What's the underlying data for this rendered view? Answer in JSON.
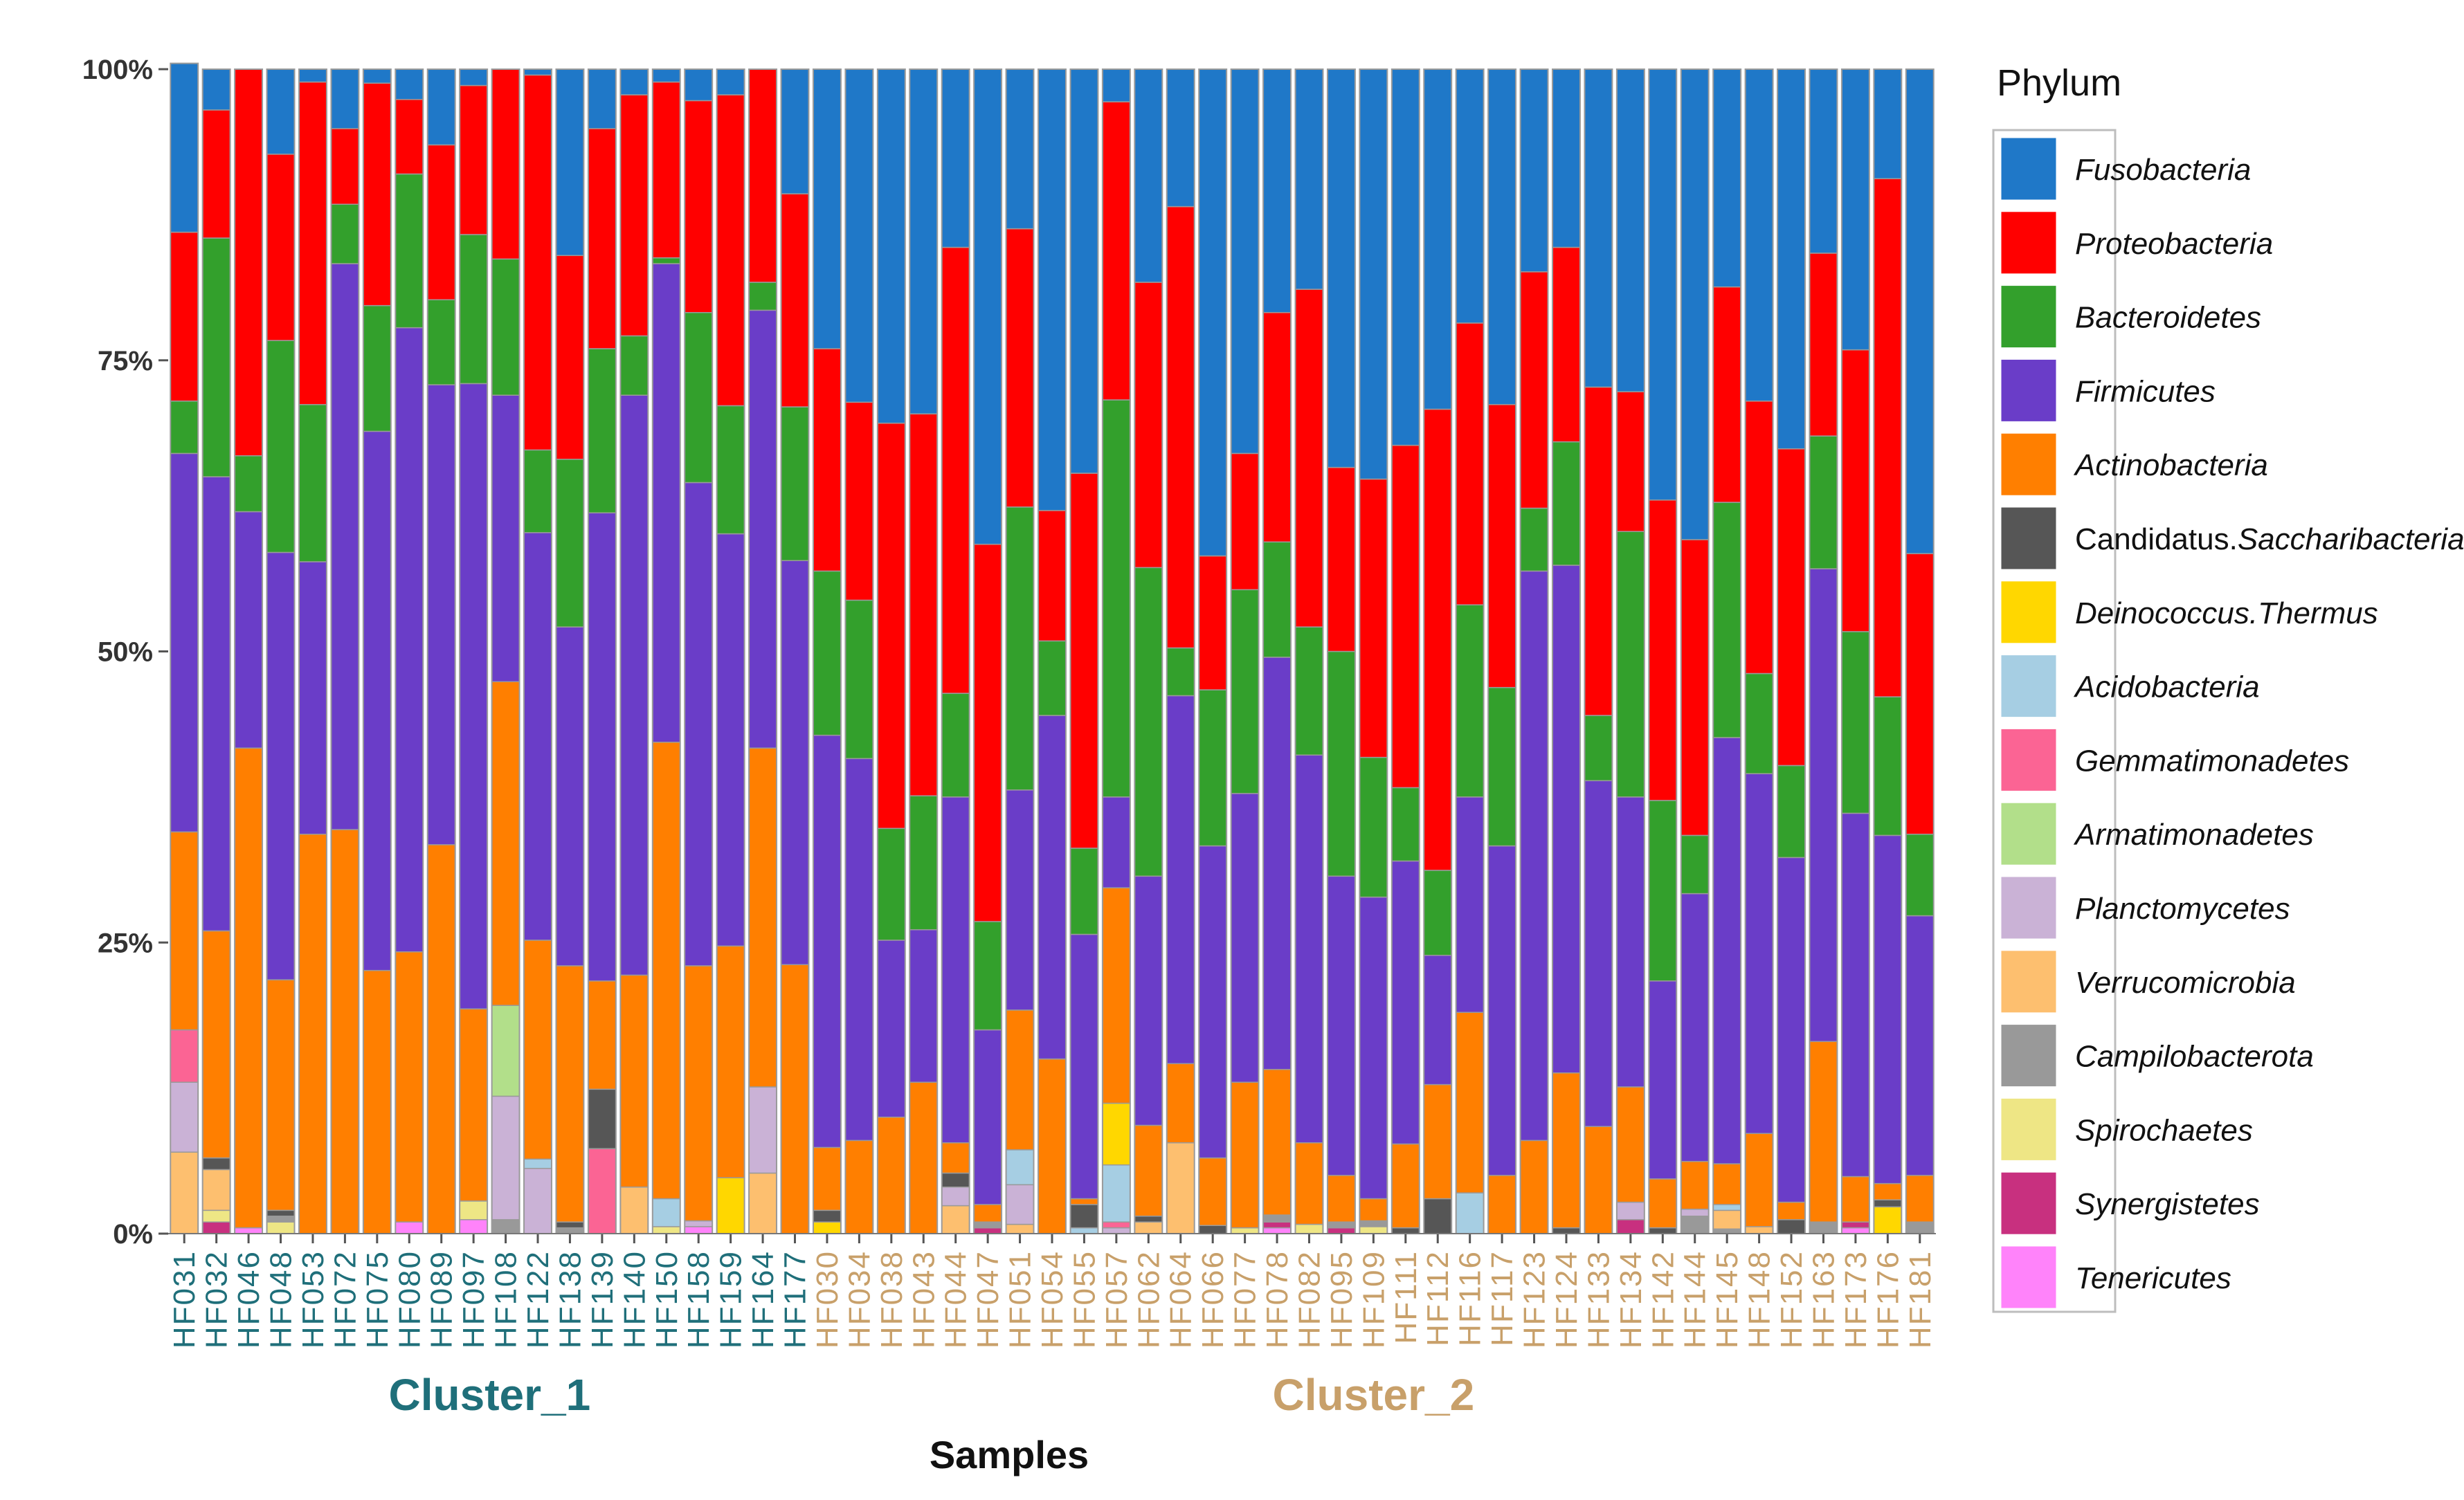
{
  "chart_data": {
    "type": "bar",
    "stacked": true,
    "normalized": true,
    "xlabel": "Samples",
    "ylabel": "",
    "ylim": [
      0,
      100
    ],
    "yticks": [
      "0%",
      "25%",
      "50%",
      "75%",
      "100%"
    ],
    "legend_title": "Phylum",
    "legend_position": "right",
    "clusters": [
      {
        "name": "Cluster_1",
        "color": "#1f6f7a",
        "samples": [
          "HF031",
          "HF032",
          "HF046",
          "HF048",
          "HF053",
          "HF072",
          "HF075",
          "HF080",
          "HF089",
          "HF097",
          "HF108",
          "HF122",
          "HF138",
          "HF139",
          "HF140",
          "HF150",
          "HF158",
          "HF159",
          "HF164",
          "HF177"
        ]
      },
      {
        "name": "Cluster_2",
        "color": "#c8a06a",
        "samples": [
          "HF030",
          "HF034",
          "HF038",
          "HF043",
          "HF044",
          "HF047",
          "HF051",
          "HF054",
          "HF055",
          "HF057",
          "HF062",
          "HF064",
          "HF066",
          "HF077",
          "HF078",
          "HF082",
          "HF095",
          "HF109",
          "HF111",
          "HF112",
          "HF116",
          "HF117",
          "HF123",
          "HF124",
          "HF133",
          "HF134",
          "HF142",
          "HF144",
          "HF145",
          "HF148",
          "HF152",
          "HF163",
          "HF173",
          "HF176",
          "HF181"
        ]
      }
    ],
    "stack_order": [
      "Tenericutes",
      "Synergistetes",
      "Spirochaetes",
      "Campilobacterota",
      "Verrucomicrobia",
      "Planctomycetes",
      "Armatimonadetes",
      "Gemmatimonadetes",
      "Acidobacteria",
      "Deinococcus.Thermus",
      "Candidatus.Saccharibacteria",
      "Actinobacteria",
      "Firmicutes",
      "Bacteroidetes",
      "Proteobacteria",
      "Fusobacteria"
    ],
    "series": [
      {
        "name": "Fusobacteria",
        "color": "#1f78c8"
      },
      {
        "name": "Proteobacteria",
        "color": "#ff0000"
      },
      {
        "name": "Bacteroidetes",
        "color": "#33a02c"
      },
      {
        "name": "Firmicutes",
        "color": "#6a3dc8"
      },
      {
        "name": "Actinobacteria",
        "color": "#ff7f00"
      },
      {
        "name": "Candidatus.Saccharibacteria",
        "color": "#565656",
        "label_prefix": "Candidatus.",
        "label_italic": "Saccharibacteria"
      },
      {
        "name": "Deinococcus.Thermus",
        "color": "#ffd700"
      },
      {
        "name": "Acidobacteria",
        "color": "#a6cee3"
      },
      {
        "name": "Gemmatimonadetes",
        "color": "#fb6494"
      },
      {
        "name": "Armatimonadetes",
        "color": "#b2df8a"
      },
      {
        "name": "Planctomycetes",
        "color": "#cab2d6"
      },
      {
        "name": "Verrucomicrobia",
        "color": "#fdbf6f"
      },
      {
        "name": "Campilobacterota",
        "color": "#999999"
      },
      {
        "name": "Spirochaetes",
        "color": "#eee685"
      },
      {
        "name": "Synergistetes",
        "color": "#c8307f"
      },
      {
        "name": "Tenericutes",
        "color": "#ff83fa"
      }
    ],
    "values": {
      "HF031": {
        "Verrucomicrobia": 7,
        "Planctomycetes": 6,
        "Gemmatimonadetes": 4.5,
        "Actinobacteria": 17,
        "Firmicutes": 32.5,
        "Bacteroidetes": 4.5,
        "Proteobacteria": 14.5,
        "Fusobacteria": 14.5
      },
      "HF032": {
        "Synergistetes": 1,
        "Spirochaetes": 1,
        "Verrucomicrobia": 3.5,
        "Candidatus.Saccharibacteria": 1,
        "Actinobacteria": 19.5,
        "Firmicutes": 39,
        "Bacteroidetes": 20.5,
        "Proteobacteria": 11,
        "Fusobacteria": 3.5
      },
      "HF046": {
        "Tenericutes": 0.5,
        "Actinobacteria": 41.2,
        "Firmicutes": 20.3,
        "Bacteroidetes": 4.8,
        "Proteobacteria": 33.2
      },
      "HF048": {
        "Spirochaetes": 1,
        "Campilobacterota": 0.5,
        "Candidatus.Saccharibacteria": 0.5,
        "Actinobacteria": 19.8,
        "Firmicutes": 36.7,
        "Bacteroidetes": 18.2,
        "Proteobacteria": 16,
        "Fusobacteria": 7.3
      },
      "HF053": {
        "Actinobacteria": 34.3,
        "Firmicutes": 23.4,
        "Bacteroidetes": 13.5,
        "Proteobacteria": 27.7,
        "Fusobacteria": 1.1
      },
      "HF072": {
        "Actinobacteria": 34.7,
        "Firmicutes": 48.6,
        "Bacteroidetes": 5.1,
        "Proteobacteria": 6.5,
        "Fusobacteria": 5.1
      },
      "HF075": {
        "Actinobacteria": 22.6,
        "Firmicutes": 46.3,
        "Bacteroidetes": 10.8,
        "Proteobacteria": 19.1,
        "Fusobacteria": 1.2
      },
      "HF080": {
        "Tenericutes": 1,
        "Actinobacteria": 23.2,
        "Firmicutes": 53.6,
        "Bacteroidetes": 13.2,
        "Proteobacteria": 6.4,
        "Fusobacteria": 2.6
      },
      "HF089": {
        "Actinobacteria": 33.4,
        "Firmicutes": 39.5,
        "Bacteroidetes": 7.3,
        "Proteobacteria": 13.3,
        "Fusobacteria": 6.5
      },
      "HF097": {
        "Tenericutes": 1.2,
        "Spirochaetes": 1.6,
        "Actinobacteria": 16.5,
        "Firmicutes": 53.7,
        "Bacteroidetes": 12.8,
        "Proteobacteria": 12.8,
        "Fusobacteria": 1.4
      },
      "HF108": {
        "Campilobacterota": 1.2,
        "Planctomycetes": 10.6,
        "Armatimonadetes": 7.8,
        "Actinobacteria": 27.8,
        "Firmicutes": 24.6,
        "Bacteroidetes": 11.7,
        "Proteobacteria": 16.3
      },
      "HF122": {
        "Planctomycetes": 5.6,
        "Acidobacteria": 0.8,
        "Actinobacteria": 18.8,
        "Firmicutes": 35,
        "Bacteroidetes": 7.1,
        "Proteobacteria": 32.2,
        "Fusobacteria": 0.5
      },
      "HF138": {
        "Campilobacterota": 0.5,
        "Candidatus.Saccharibacteria": 0.5,
        "Actinobacteria": 22,
        "Firmicutes": 29.1,
        "Bacteroidetes": 14.4,
        "Proteobacteria": 17.5,
        "Fusobacteria": 16
      },
      "HF139": {
        "Gemmatimonadetes": 7.3,
        "Candidatus.Saccharibacteria": 5.1,
        "Actinobacteria": 9.3,
        "Firmicutes": 40.2,
        "Bacteroidetes": 14.1,
        "Proteobacteria": 18.9,
        "Fusobacteria": 5.1
      },
      "HF140": {
        "Verrucomicrobia": 4,
        "Actinobacteria": 18.2,
        "Firmicutes": 49.8,
        "Bacteroidetes": 5.1,
        "Proteobacteria": 20.7,
        "Fusobacteria": 2.2
      },
      "HF150": {
        "Spirochaetes": 0.6,
        "Acidobacteria": 2.4,
        "Actinobacteria": 39.2,
        "Firmicutes": 41.1,
        "Bacteroidetes": 0.5,
        "Proteobacteria": 15.1,
        "Fusobacteria": 1.1
      },
      "HF158": {
        "Tenericutes": 0.6,
        "Planctomycetes": 0.5,
        "Actinobacteria": 21.9,
        "Firmicutes": 41.5,
        "Bacteroidetes": 14.6,
        "Proteobacteria": 18.2,
        "Fusobacteria": 2.7
      },
      "HF159": {
        "Deinococcus.Thermus": 4.8,
        "Actinobacteria": 19.9,
        "Firmicutes": 35.4,
        "Bacteroidetes": 11,
        "Proteobacteria": 26.7,
        "Fusobacteria": 2.2
      },
      "HF164": {
        "Verrucomicrobia": 5.2,
        "Planctomycetes": 7.4,
        "Actinobacteria": 29.1,
        "Firmicutes": 37.6,
        "Bacteroidetes": 2.4,
        "Proteobacteria": 18.3
      },
      "HF177": {
        "Actinobacteria": 23.1,
        "Firmicutes": 34.7,
        "Bacteroidetes": 13.2,
        "Proteobacteria": 18.3,
        "Fusobacteria": 10.7
      },
      "HF030": {
        "Deinococcus.Thermus": 1,
        "Candidatus.Saccharibacteria": 1,
        "Actinobacteria": 5.4,
        "Firmicutes": 35.4,
        "Bacteroidetes": 14.1,
        "Proteobacteria": 19.1,
        "Fusobacteria": 24
      },
      "HF034": {
        "Actinobacteria": 8,
        "Firmicutes": 32.8,
        "Bacteroidetes": 13.6,
        "Proteobacteria": 17,
        "Fusobacteria": 28.6
      },
      "HF038": {
        "Actinobacteria": 10,
        "Firmicutes": 15.2,
        "Bacteroidetes": 9.6,
        "Proteobacteria": 34.8,
        "Fusobacteria": 30.4
      },
      "HF043": {
        "Actinobacteria": 13,
        "Firmicutes": 13.1,
        "Bacteroidetes": 11.5,
        "Proteobacteria": 32.8,
        "Fusobacteria": 29.6
      },
      "HF044": {
        "Verrucomicrobia": 2.4,
        "Planctomycetes": 1.6,
        "Candidatus.Saccharibacteria": 1.2,
        "Actinobacteria": 2.6,
        "Firmicutes": 29.7,
        "Bacteroidetes": 8.9,
        "Proteobacteria": 38.3,
        "Fusobacteria": 15.3
      },
      "HF047": {
        "Synergistetes": 0.5,
        "Campilobacterota": 0.5,
        "Actinobacteria": 1.5,
        "Firmicutes": 15,
        "Bacteroidetes": 9.3,
        "Proteobacteria": 32.4,
        "Fusobacteria": 40.8
      },
      "HF051": {
        "Verrucomicrobia": 0.8,
        "Planctomycetes": 3.4,
        "Acidobacteria": 3,
        "Actinobacteria": 12,
        "Firmicutes": 18.9,
        "Bacteroidetes": 24.3,
        "Proteobacteria": 23.9,
        "Fusobacteria": 13.7
      },
      "HF054": {
        "Actinobacteria": 15,
        "Firmicutes": 29.5,
        "Bacteroidetes": 6.4,
        "Proteobacteria": 11.2,
        "Fusobacteria": 37.9
      },
      "HF055": {
        "Candidatus.Saccharibacteria": 2,
        "Acidobacteria": 0.5,
        "Actinobacteria": 0.5,
        "Firmicutes": 22.7,
        "Bacteroidetes": 7.4,
        "Proteobacteria": 32.2,
        "Fusobacteria": 34.7
      },
      "HF057": {
        "Gemmatimonadetes": 0.5,
        "Planctomycetes": 0.5,
        "Acidobacteria": 4.9,
        "Deinococcus.Thermus": 5.3,
        "Actinobacteria": 18.5,
        "Firmicutes": 7.8,
        "Bacteroidetes": 34.1,
        "Proteobacteria": 25.6,
        "Fusobacteria": 2.8
      },
      "HF062": {
        "Verrucomicrobia": 1,
        "Candidatus.Saccharibacteria": 0.5,
        "Actinobacteria": 7.8,
        "Firmicutes": 21.4,
        "Bacteroidetes": 26.5,
        "Proteobacteria": 24.5,
        "Fusobacteria": 18.3
      },
      "HF064": {
        "Verrucomicrobia": 7.8,
        "Actinobacteria": 6.8,
        "Firmicutes": 31.6,
        "Bacteroidetes": 4.1,
        "Proteobacteria": 37.9,
        "Fusobacteria": 11.8
      },
      "HF066": {
        "Candidatus.Saccharibacteria": 0.7,
        "Actinobacteria": 5.8,
        "Firmicutes": 26.8,
        "Bacteroidetes": 13.4,
        "Proteobacteria": 11.5,
        "Fusobacteria": 41.8
      },
      "HF077": {
        "Spirochaetes": 0.5,
        "Actinobacteria": 12.5,
        "Firmicutes": 24.8,
        "Bacteroidetes": 17.5,
        "Proteobacteria": 11.7,
        "Fusobacteria": 33
      },
      "HF078": {
        "Tenericutes": 0.5,
        "Synergistetes": 0.5,
        "Campilobacterota": 0.6,
        "Actinobacteria": 12.5,
        "Firmicutes": 35.4,
        "Bacteroidetes": 9.9,
        "Proteobacteria": 19.7,
        "Fusobacteria": 20.9
      },
      "HF082": {
        "Spirochaetes": 0.8,
        "Actinobacteria": 7,
        "Firmicutes": 33.3,
        "Bacteroidetes": 11,
        "Proteobacteria": 29,
        "Fusobacteria": 18.9
      },
      "HF095": {
        "Synergistetes": 0.5,
        "Campilobacterota": 0.5,
        "Actinobacteria": 4,
        "Firmicutes": 25.7,
        "Bacteroidetes": 19.3,
        "Proteobacteria": 15.8,
        "Fusobacteria": 34.2
      },
      "HF109": {
        "Spirochaetes": 0.6,
        "Campilobacterota": 0.5,
        "Actinobacteria": 1.9,
        "Firmicutes": 25.9,
        "Bacteroidetes": 12,
        "Proteobacteria": 23.9,
        "Fusobacteria": 35.2
      },
      "HF111": {
        "Candidatus.Saccharibacteria": 0.5,
        "Actinobacteria": 7.2,
        "Firmicutes": 24.3,
        "Bacteroidetes": 6.3,
        "Proteobacteria": 29.4,
        "Fusobacteria": 32.3
      },
      "HF112": {
        "Candidatus.Saccharibacteria": 3,
        "Actinobacteria": 9.8,
        "Firmicutes": 11.1,
        "Bacteroidetes": 7.3,
        "Proteobacteria": 39.6,
        "Fusobacteria": 29.2
      },
      "HF116": {
        "Acidobacteria": 3.5,
        "Actinobacteria": 15.5,
        "Firmicutes": 18.5,
        "Bacteroidetes": 16.5,
        "Proteobacteria": 24.2,
        "Fusobacteria": 21.8
      },
      "HF117": {
        "Actinobacteria": 5,
        "Firmicutes": 28.3,
        "Bacteroidetes": 13.6,
        "Proteobacteria": 24.3,
        "Fusobacteria": 28.8
      },
      "HF123": {
        "Actinobacteria": 8,
        "Firmicutes": 48.9,
        "Bacteroidetes": 5.4,
        "Proteobacteria": 20.3,
        "Fusobacteria": 17.4
      },
      "HF124": {
        "Candidatus.Saccharibacteria": 0.5,
        "Actinobacteria": 13.3,
        "Firmicutes": 43.6,
        "Bacteroidetes": 10.6,
        "Proteobacteria": 16.7,
        "Fusobacteria": 15.3
      },
      "HF133": {
        "Actinobacteria": 9.2,
        "Firmicutes": 29.7,
        "Bacteroidetes": 5.6,
        "Proteobacteria": 28.2,
        "Fusobacteria": 27.3
      },
      "HF134": {
        "Synergistetes": 1.2,
        "Planctomycetes": 1.5,
        "Actinobacteria": 9.9,
        "Firmicutes": 24.9,
        "Bacteroidetes": 22.8,
        "Proteobacteria": 12,
        "Fusobacteria": 27.7
      },
      "HF142": {
        "Candidatus.Saccharibacteria": 0.5,
        "Actinobacteria": 4.2,
        "Firmicutes": 17,
        "Bacteroidetes": 15.5,
        "Proteobacteria": 25.8,
        "Fusobacteria": 37
      },
      "HF144": {
        "Campilobacterota": 1.5,
        "Planctomycetes": 0.6,
        "Actinobacteria": 4.1,
        "Firmicutes": 23,
        "Bacteroidetes": 5,
        "Proteobacteria": 25.4,
        "Fusobacteria": 40.4
      },
      "HF145": {
        "Verrucomicrobia": 1.6,
        "Acidobacteria": 0.5,
        "Campilobacterota": 0.4,
        "Actinobacteria": 3.5,
        "Firmicutes": 36.6,
        "Bacteroidetes": 20.2,
        "Proteobacteria": 18.5,
        "Fusobacteria": 18.7
      },
      "HF148": {
        "Verrucomicrobia": 0.6,
        "Actinobacteria": 8,
        "Firmicutes": 30.9,
        "Bacteroidetes": 8.6,
        "Proteobacteria": 23.4,
        "Fusobacteria": 28.5
      },
      "HF152": {
        "Candidatus.Saccharibacteria": 1.2,
        "Actinobacteria": 1.5,
        "Firmicutes": 29.6,
        "Bacteroidetes": 7.9,
        "Proteobacteria": 27.2,
        "Fusobacteria": 32.6
      },
      "HF163": {
        "Campilobacterota": 1,
        "Actinobacteria": 15.5,
        "Firmicutes": 40.6,
        "Bacteroidetes": 11.4,
        "Proteobacteria": 15.7,
        "Fusobacteria": 15.8
      },
      "HF173": {
        "Tenericutes": 0.5,
        "Synergistetes": 0.5,
        "Actinobacteria": 3.9,
        "Firmicutes": 31.2,
        "Bacteroidetes": 15.6,
        "Proteobacteria": 24.2,
        "Fusobacteria": 24.1
      },
      "HF176": {
        "Deinococcus.Thermus": 2.3,
        "Candidatus.Saccharibacteria": 0.6,
        "Actinobacteria": 1.4,
        "Firmicutes": 29.9,
        "Bacteroidetes": 11.9,
        "Proteobacteria": 44.5,
        "Fusobacteria": 9.4
      },
      "HF181": {
        "Campilobacterota": 1,
        "Actinobacteria": 4,
        "Firmicutes": 22.3,
        "Bacteroidetes": 7,
        "Proteobacteria": 24.1,
        "Fusobacteria": 41.6
      }
    }
  }
}
